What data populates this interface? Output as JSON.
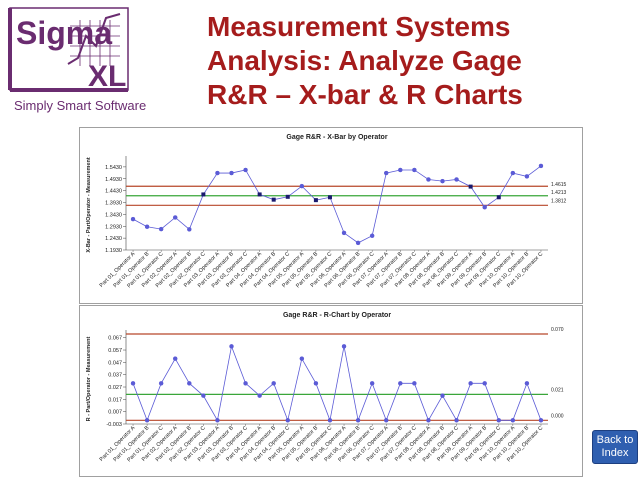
{
  "logo": {
    "line1": "Sigma",
    "line2": "XL",
    "tagline": "Simply Smart Software",
    "color": "#6a2c70"
  },
  "title": {
    "line1": "Measurement Systems",
    "line2": "Analysis: Analyze Gage",
    "line3": "R&R – X-bar & R Charts",
    "color": "#a51c1c"
  },
  "nav": {
    "back_label_1": "Back to",
    "back_label_2": "Index",
    "color": "#2f5fb0"
  },
  "colors": {
    "series": "#5b5bd6",
    "ucl_lcl": "#b7472a",
    "center": "#3aa63a",
    "marker": "#1a1a6e"
  },
  "chart_data": [
    {
      "type": "line",
      "title": "Gage R&R - X-Bar by Operator",
      "ylabel": "X-Bar - Part/Operator - Measurement",
      "xlabel": "",
      "ylim": [
        1.193,
        1.572
      ],
      "yticks": [
        "1.5430",
        "1.4930",
        "1.4430",
        "1.3930",
        "1.3430",
        "1.2930",
        "1.2430",
        "1.1930"
      ],
      "categories": [
        "Part 01_Operator A",
        "Part 01_Operator B",
        "Part 01_Operator C",
        "Part 02_Operator A",
        "Part 02_Operator B",
        "Part 02_Operator C",
        "Part 03_Operator A",
        "Part 03_Operator B",
        "Part 03_Operator C",
        "Part 04_Operator A",
        "Part 04_Operator B",
        "Part 04_Operator C",
        "Part 05_Operator A",
        "Part 05_Operator B",
        "Part 05_Operator C",
        "Part 06_Operator A",
        "Part 06_Operator B",
        "Part 06_Operator C",
        "Part 07_Operator A",
        "Part 07_Operator B",
        "Part 07_Operator C",
        "Part 08_Operator A",
        "Part 08_Operator B",
        "Part 08_Operator C",
        "Part 09_Operator A",
        "Part 09_Operator B",
        "Part 09_Operator C",
        "Part 10_Operator A",
        "Part 10_Operator B",
        "Part 10_Operator C"
      ],
      "values": [
        1.323,
        1.291,
        1.281,
        1.33,
        1.28,
        1.427,
        1.517,
        1.517,
        1.53,
        1.427,
        1.405,
        1.417,
        1.462,
        1.403,
        1.415,
        1.265,
        1.223,
        1.253,
        1.517,
        1.53,
        1.53,
        1.49,
        1.483,
        1.49,
        1.46,
        1.373,
        1.415,
        1.517,
        1.503,
        1.547
      ],
      "limits": [
        {
          "label": "1.4615",
          "value": 1.4615,
          "kind": "ucl"
        },
        {
          "label": "1.4213",
          "value": 1.4213,
          "kind": "center"
        },
        {
          "label": "1.3812",
          "value": 1.3812,
          "kind": "lcl"
        }
      ]
    },
    {
      "type": "line",
      "title": "Gage R&R - R-Chart by Operator",
      "ylabel": "R - Part/Operator - Measurement",
      "xlabel": "",
      "ylim": [
        -0.003,
        0.07
      ],
      "yticks": [
        "0.067",
        "0.057",
        "0.047",
        "0.037",
        "0.027",
        "0.017",
        "0.007",
        "-0.003"
      ],
      "categories": [
        "Part 01_Operator A",
        "Part 01_Operator B",
        "Part 01_Operator C",
        "Part 02_Operator A",
        "Part 02_Operator B",
        "Part 02_Operator C",
        "Part 03_Operator A",
        "Part 03_Operator B",
        "Part 03_Operator C",
        "Part 04_Operator A",
        "Part 04_Operator B",
        "Part 04_Operator C",
        "Part 05_Operator A",
        "Part 05_Operator B",
        "Part 05_Operator C",
        "Part 06_Operator A",
        "Part 06_Operator B",
        "Part 06_Operator C",
        "Part 07_Operator A",
        "Part 07_Operator B",
        "Part 07_Operator C",
        "Part 08_Operator A",
        "Part 08_Operator B",
        "Part 08_Operator C",
        "Part 09_Operator A",
        "Part 09_Operator B",
        "Part 09_Operator C",
        "Part 10_Operator A",
        "Part 10_Operator B",
        "Part 10_Operator C"
      ],
      "values": [
        0.03,
        0.0,
        0.03,
        0.05,
        0.03,
        0.02,
        0.0,
        0.06,
        0.03,
        0.02,
        0.03,
        0.0,
        0.05,
        0.03,
        0.0,
        0.06,
        0.0,
        0.03,
        0.0,
        0.03,
        0.03,
        0.0,
        0.02,
        0.0,
        0.03,
        0.03,
        0.0,
        0.0,
        0.03,
        0.0
      ],
      "limits": [
        {
          "label": "0.070",
          "value": 0.07,
          "kind": "ucl"
        },
        {
          "label": "0.021",
          "value": 0.021,
          "kind": "center"
        },
        {
          "label": "0.000",
          "value": 0.0,
          "kind": "lcl"
        }
      ]
    }
  ]
}
